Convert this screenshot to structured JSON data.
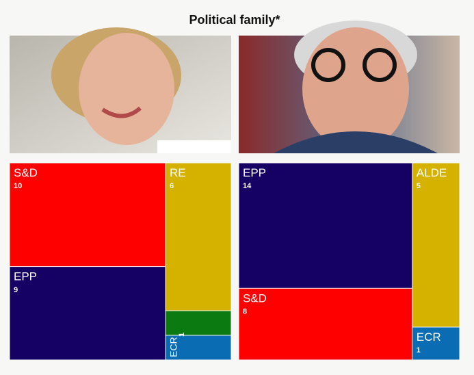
{
  "title": "Political family*",
  "chart_data": [
    {
      "type": "treemap",
      "categories": [
        "S&D",
        "EPP",
        "RE",
        null,
        "ECR"
      ],
      "values": [
        10,
        9,
        6,
        1,
        1
      ],
      "colors": [
        "#ff0000",
        "#150063",
        "#d6b200",
        "#0b7a10",
        "#0a6db3"
      ]
    },
    {
      "type": "treemap",
      "categories": [
        "EPP",
        "S&D",
        "ALDE",
        "ECR"
      ],
      "values": [
        14,
        8,
        5,
        1
      ],
      "colors": [
        "#150063",
        "#ff0000",
        "#d6b200",
        "#0a6db3"
      ]
    }
  ]
}
